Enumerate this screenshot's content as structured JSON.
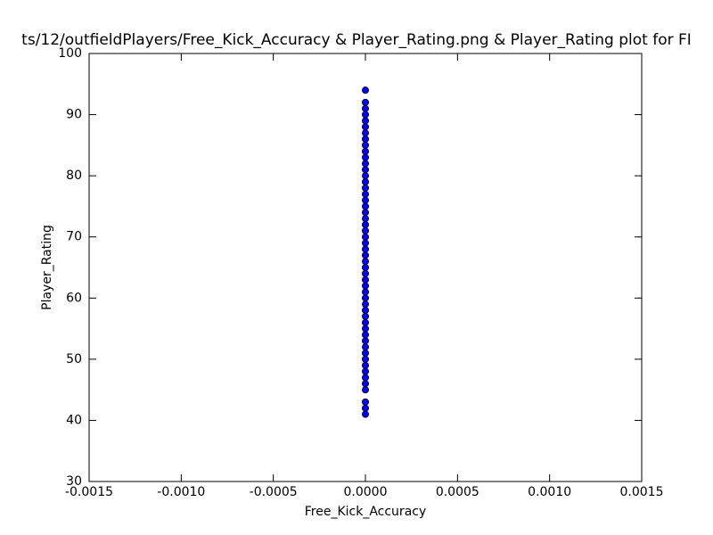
{
  "chart_data": {
    "type": "scatter",
    "title": "ts/12/outfieldPlayers/Free_Kick_Accuracy & Player_Rating.png & Player_Rating plot for FI",
    "x_label": "Free_Kick_Accuracy",
    "y_label": "Player_Rating",
    "xlim": [
      -0.0015,
      0.0015
    ],
    "xticks": [
      {
        "value": -0.0015,
        "label": "-0.0015"
      },
      {
        "value": -0.001,
        "label": "-0.0010"
      },
      {
        "value": -0.0005,
        "label": "-0.0005"
      },
      {
        "value": 0,
        "label": "0.0000"
      },
      {
        "value": 0.0005,
        "label": "0.0005"
      },
      {
        "value": 0.001,
        "label": "0.0010"
      },
      {
        "value": 0.0015,
        "label": "0.0015"
      }
    ],
    "ylim": [
      30,
      100
    ],
    "yticks": [
      30,
      40,
      50,
      60,
      70,
      80,
      90,
      100
    ],
    "grid": false,
    "series": [
      {
        "color": "#0000ff",
        "x": [
          0,
          0,
          0,
          0,
          0,
          0,
          0,
          0,
          0,
          0,
          0,
          0,
          0,
          0,
          0,
          0,
          0,
          0,
          0,
          0,
          0,
          0,
          0,
          0,
          0,
          0,
          0,
          0,
          0,
          0,
          0,
          0,
          0,
          0,
          0,
          0,
          0,
          0,
          0,
          0,
          0,
          0,
          0,
          0,
          0,
          0,
          0,
          0,
          0,
          0,
          0,
          0
        ],
        "values": [
          41,
          42,
          43,
          45,
          46,
          47,
          48,
          49,
          50,
          51,
          52,
          53,
          54,
          55,
          56,
          57,
          58,
          59,
          60,
          61,
          62,
          63,
          64,
          65,
          66,
          67,
          68,
          69,
          70,
          71,
          72,
          73,
          74,
          75,
          76,
          77,
          78,
          79,
          80,
          81,
          82,
          83,
          84,
          85,
          86,
          87,
          88,
          89,
          90,
          91,
          92,
          94
        ]
      }
    ]
  }
}
